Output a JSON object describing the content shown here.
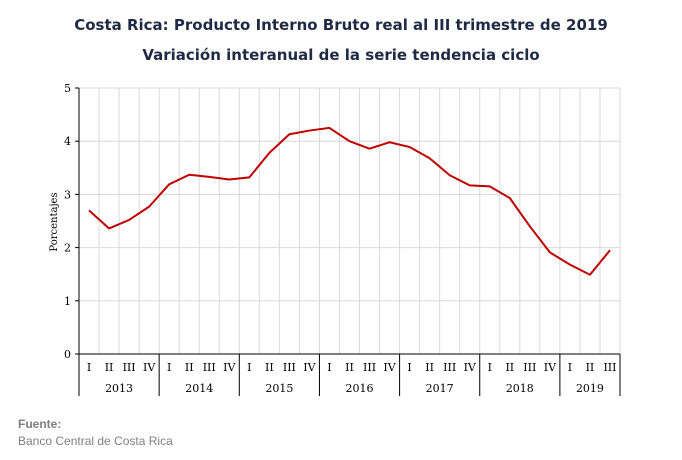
{
  "header": {
    "title": "Costa Rica: Producto Interno Bruto real al III trimestre de 2019",
    "subtitle": "Variación interanual de la serie tendencia ciclo"
  },
  "source": {
    "label": "Fuente:",
    "text": "Banco Central de Costa Rica"
  },
  "colors": {
    "line": "#c00000",
    "grid": "#d9d9d9"
  },
  "chart_data": {
    "type": "line",
    "title": "Costa Rica: Producto Interno Bruto real al III trimestre de 2019",
    "subtitle": "Variación interanual de la serie tendencia ciclo",
    "ylabel": "Porcentajes",
    "xlabel": "",
    "ylim": [
      0,
      5
    ],
    "yticks": [
      0,
      1,
      2,
      3,
      4,
      5
    ],
    "grid": true,
    "years": [
      {
        "label": "2013",
        "quarters": [
          "I",
          "II",
          "III",
          "IV"
        ]
      },
      {
        "label": "2014",
        "quarters": [
          "I",
          "II",
          "III",
          "IV"
        ]
      },
      {
        "label": "2015",
        "quarters": [
          "I",
          "II",
          "III",
          "IV"
        ]
      },
      {
        "label": "2016",
        "quarters": [
          "I",
          "II",
          "III",
          "IV"
        ]
      },
      {
        "label": "2017",
        "quarters": [
          "I",
          "II",
          "III",
          "IV"
        ]
      },
      {
        "label": "2018",
        "quarters": [
          "I",
          "II",
          "III",
          "IV"
        ]
      },
      {
        "label": "2019",
        "quarters": [
          "I",
          "II",
          "III"
        ]
      }
    ],
    "series": [
      {
        "values": [
          2.7,
          2.36,
          2.52,
          2.77,
          3.19,
          3.37,
          3.33,
          3.28,
          3.32,
          3.78,
          4.13,
          4.2,
          4.25,
          4.0,
          3.86,
          3.98,
          3.89,
          3.68,
          3.36,
          3.17,
          3.15,
          2.93,
          2.4,
          1.91,
          1.68,
          1.49,
          1.95
        ]
      }
    ]
  }
}
